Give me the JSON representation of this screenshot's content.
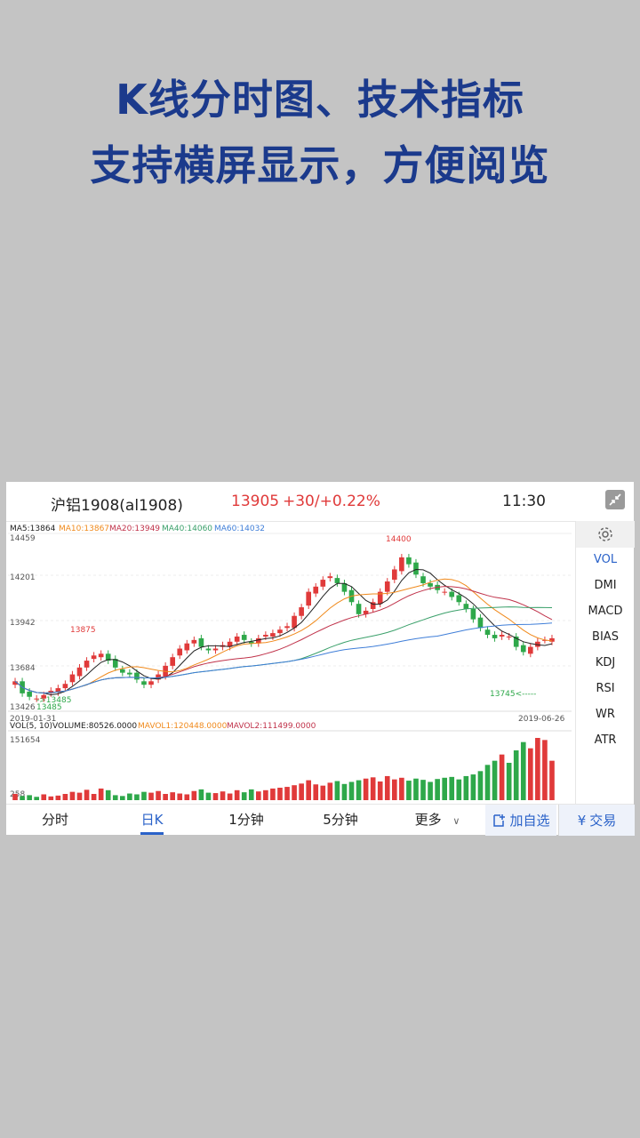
{
  "headline": {
    "line1": "K线分时图、技术指标",
    "line2": "支持横屏显示，方便阅览"
  },
  "header": {
    "symbol": "沪铝1908(al1908)",
    "price": "13905",
    "change": "+30/+0.22%",
    "time": "11:30"
  },
  "legend": {
    "ma5": "MA5:13864",
    "ma10": "MA10:13867",
    "ma20": "MA20:13949",
    "ma40": "MA40:14060",
    "ma60": "MA60:14032"
  },
  "price_axis": {
    "t1": "14459",
    "t2": "14201",
    "t3": "13942",
    "t4": "13684",
    "t5": "13426"
  },
  "annotations": {
    "high1": "13875",
    "high2": "14400",
    "low1": "->13485",
    "low2": "13745<-----",
    "low_label": "13485"
  },
  "dates": {
    "start": "2019-01-31",
    "end": "2019-06-26"
  },
  "vol_legend": {
    "vol": "VOL(5, 10)",
    "volume": "VOLUME:80526.0000",
    "mavol1": "MAVOL1:120448.0000",
    "mavol2": "MAVOL2:111499.0000"
  },
  "vol_axis": {
    "top": "151654",
    "bottom": "258"
  },
  "indicators": [
    "VOL",
    "DMI",
    "MACD",
    "BIAS",
    "KDJ",
    "RSI",
    "WR",
    "ATR"
  ],
  "tabs": {
    "t1": "分时",
    "t2": "日K",
    "t3": "1分钟",
    "t4": "5分钟",
    "t5": "更多"
  },
  "buttons": {
    "add": "加自选",
    "trade": "交易"
  },
  "colors": {
    "up": "#e03a3a",
    "down": "#2ea84a",
    "accent": "#2a62c9",
    "headline": "#1b3a8c",
    "ma5": "#222222",
    "ma10": "#f08a1c",
    "ma20": "#c0324a",
    "ma40": "#3aa06a",
    "ma60": "#3f7ed8"
  },
  "chart_data": {
    "type": "candlestick",
    "x_start": "2019-01-31",
    "x_end": "2019-06-26",
    "ylim": [
      13426,
      14459
    ],
    "closes": [
      13600,
      13530,
      13510,
      13500,
      13520,
      13545,
      13560,
      13585,
      13640,
      13680,
      13720,
      13750,
      13760,
      13720,
      13680,
      13650,
      13640,
      13610,
      13580,
      13600,
      13640,
      13690,
      13740,
      13790,
      13820,
      13840,
      13800,
      13780,
      13790,
      13810,
      13830,
      13860,
      13840,
      13820,
      13850,
      13870,
      13880,
      13900,
      13920,
      13980,
      14030,
      14120,
      14150,
      14190,
      14210,
      14170,
      14120,
      14060,
      13990,
      14010,
      14060,
      14120,
      14180,
      14250,
      14320,
      14280,
      14220,
      14170,
      14150,
      14130,
      14120,
      14090,
      14060,
      14020,
      13960,
      13910,
      13870,
      13850,
      13870,
      13860,
      13800,
      13770,
      13800,
      13830,
      13840,
      13850
    ],
    "volumes": [
      15000,
      10000,
      12000,
      8000,
      14000,
      9000,
      11000,
      15000,
      20000,
      18000,
      25000,
      15000,
      28000,
      24000,
      12000,
      10000,
      16000,
      14000,
      20000,
      18000,
      22000,
      15000,
      19000,
      16000,
      14000,
      22000,
      26000,
      18000,
      17000,
      21000,
      16000,
      24000,
      19000,
      26000,
      21000,
      24000,
      28000,
      30000,
      32000,
      36000,
      40000,
      48000,
      38000,
      35000,
      42000,
      46000,
      39000,
      44000,
      48000,
      52000,
      55000,
      45000,
      58000,
      50000,
      54000,
      47000,
      52000,
      49000,
      44000,
      51000,
      54000,
      56000,
      50000,
      58000,
      62000,
      70000,
      85000,
      95000,
      110000,
      90000,
      120000,
      140000,
      125000,
      150000,
      145000,
      95000
    ]
  }
}
